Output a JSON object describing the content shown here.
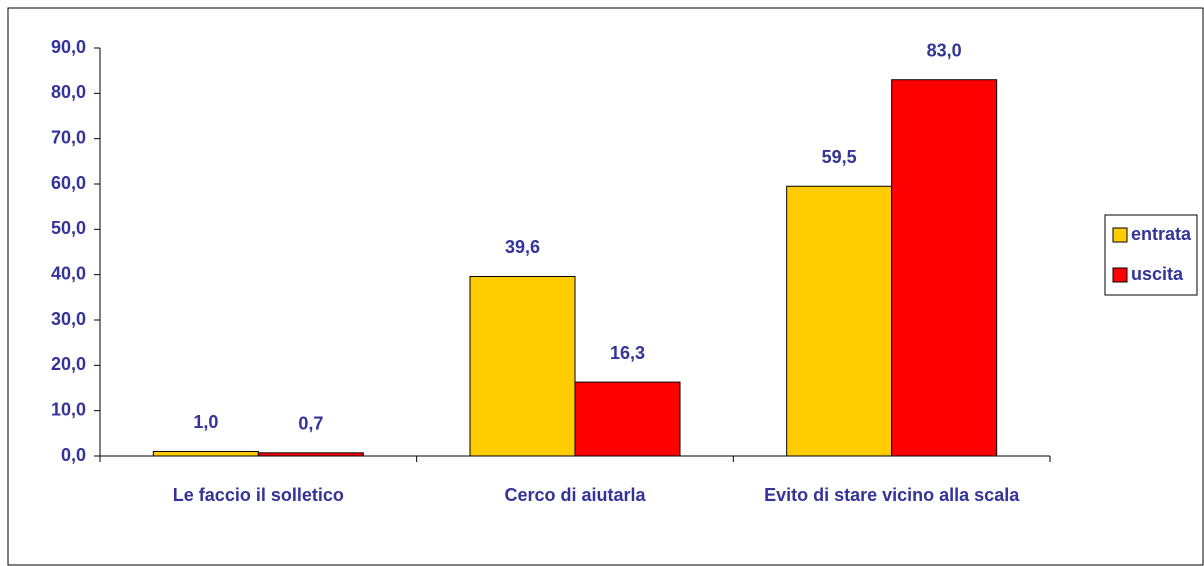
{
  "chart_data": {
    "type": "bar",
    "categories": [
      "Le faccio il solletico",
      "Cerco di aiutarla",
      "Evito di stare vicino alla scala"
    ],
    "series": [
      {
        "name": "entrata",
        "color": "#ffcc00",
        "values": [
          1.0,
          39.6,
          59.5
        ],
        "value_labels": [
          "1,0",
          "39,6",
          "59,5"
        ]
      },
      {
        "name": "uscita",
        "color": "#ff0000",
        "values": [
          0.7,
          16.3,
          83.0
        ],
        "value_labels": [
          "0,7",
          "16,3",
          "83,0"
        ]
      }
    ],
    "ylim": [
      0,
      90
    ],
    "yticks": [
      {
        "value": 0,
        "label": "0,0"
      },
      {
        "value": 10,
        "label": "10,0"
      },
      {
        "value": 20,
        "label": "20,0"
      },
      {
        "value": 30,
        "label": "30,0"
      },
      {
        "value": 40,
        "label": "40,0"
      },
      {
        "value": 50,
        "label": "50,0"
      },
      {
        "value": 60,
        "label": "60,0"
      },
      {
        "value": 70,
        "label": "70,0"
      },
      {
        "value": 80,
        "label": "80,0"
      },
      {
        "value": 90,
        "label": "90,0"
      }
    ],
    "legend": "right"
  }
}
